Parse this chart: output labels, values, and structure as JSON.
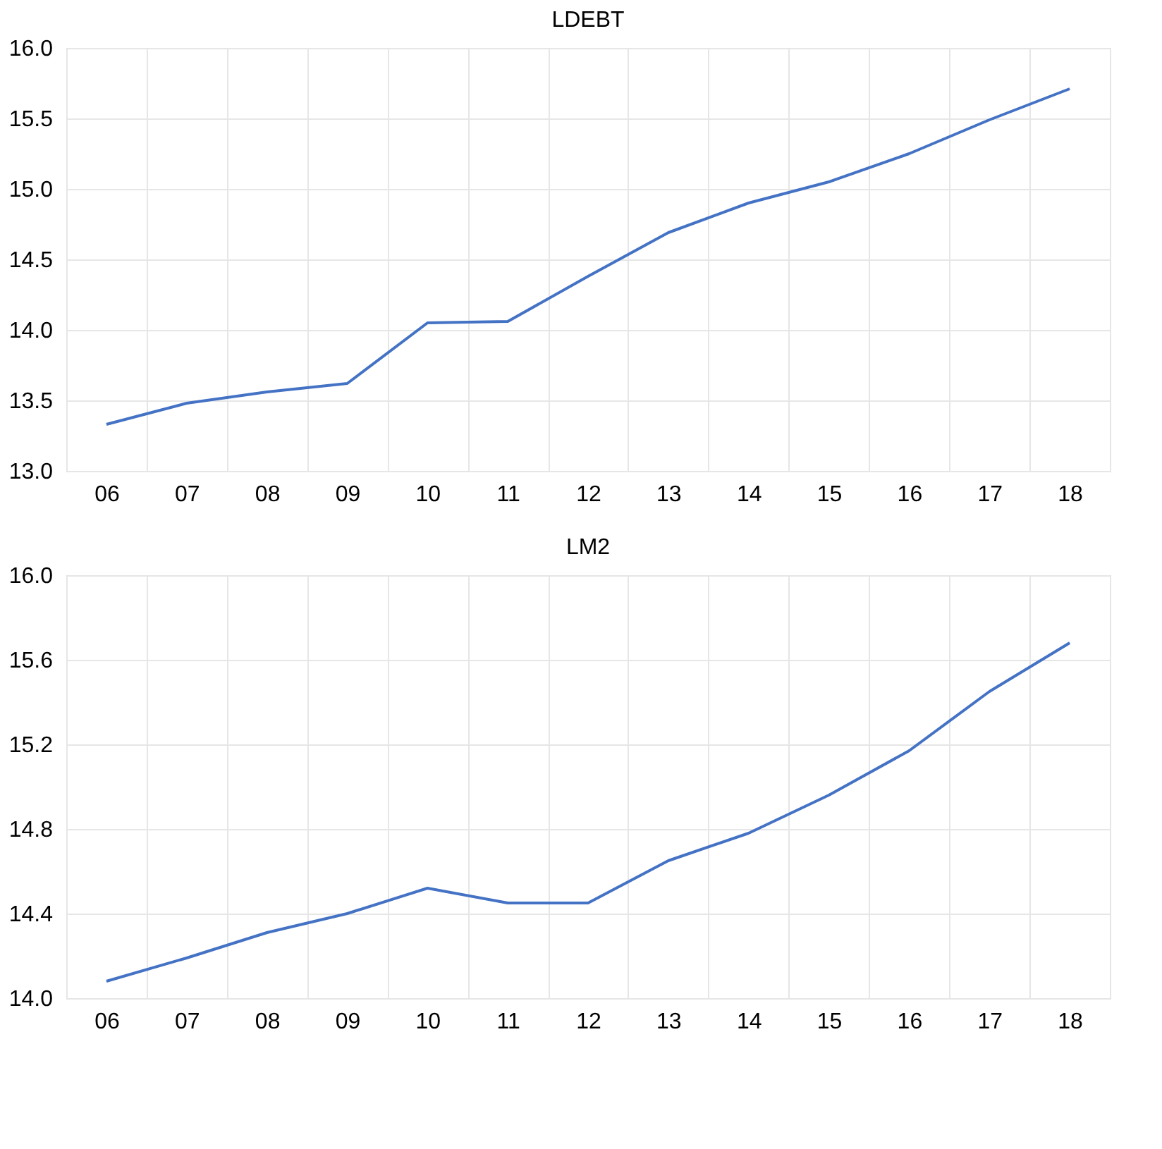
{
  "chart_data": [
    {
      "type": "line",
      "title": "LDEBT",
      "categories": [
        "06",
        "07",
        "08",
        "09",
        "10",
        "11",
        "12",
        "13",
        "14",
        "15",
        "16",
        "17",
        "18"
      ],
      "series": [
        {
          "color": "#4472c4",
          "values": [
            13.33,
            13.48,
            13.56,
            13.62,
            14.05,
            14.06,
            14.38,
            14.69,
            14.9,
            15.05,
            15.25,
            15.49,
            15.71
          ]
        }
      ],
      "ylim": [
        13.0,
        16.0
      ],
      "yticks": [
        {
          "value": 13.0,
          "label": "13.0"
        },
        13.5,
        {
          "value": 14.0,
          "label": "14.0"
        },
        14.5,
        {
          "value": 15.0,
          "label": "15.0"
        },
        15.5,
        {
          "value": 16.0,
          "label": "16.0"
        }
      ],
      "grid": true,
      "marker": "none",
      "line_style": "solid"
    },
    {
      "type": "line",
      "title": "LM2",
      "categories": [
        "06",
        "07",
        "08",
        "09",
        "10",
        "11",
        "12",
        "13",
        "14",
        "15",
        "16",
        "17",
        "18"
      ],
      "series": [
        {
          "color": "#4472c4",
          "values": [
            14.08,
            14.19,
            14.31,
            14.4,
            14.52,
            14.45,
            14.45,
            14.65,
            14.78,
            14.96,
            15.17,
            15.45,
            15.68
          ]
        }
      ],
      "ylim": [
        14.0,
        16.0
      ],
      "yticks": [
        {
          "value": 14.0,
          "label": "14.0"
        },
        14.4,
        14.8,
        15.2,
        15.6,
        {
          "value": 16.0,
          "label": "16.0"
        }
      ],
      "grid": true,
      "marker": "none",
      "line_style": "solid"
    }
  ]
}
